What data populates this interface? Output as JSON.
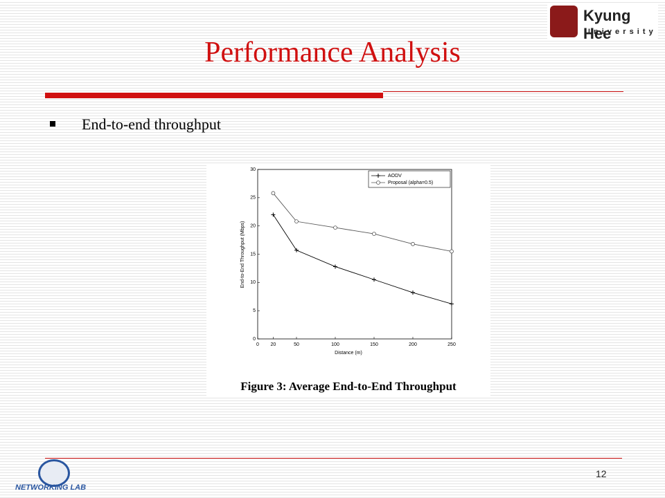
{
  "header": {
    "title": "Performance Analysis",
    "logo_name": "Kyung Hee",
    "logo_sub": "U n i v e r s i t y"
  },
  "bullet": "End-to-end throughput",
  "chart_data": {
    "type": "line",
    "x": [
      20,
      50,
      100,
      150,
      200,
      250
    ],
    "series": [
      {
        "name": "AODV",
        "color": "#000000",
        "marker": "+",
        "values": [
          22,
          15.7,
          12.8,
          10.5,
          8.2,
          6.2
        ]
      },
      {
        "name": "Proposal (alpha=0.5)",
        "color": "#555555",
        "marker": "o",
        "values": [
          25.8,
          20.8,
          19.7,
          18.6,
          16.8,
          15.5
        ]
      }
    ],
    "xlim": [
      0,
      250
    ],
    "xticks": [
      0,
      20,
      50,
      100,
      150,
      200,
      250
    ],
    "ylim": [
      0,
      30
    ],
    "yticks": [
      0,
      5,
      10,
      15,
      20,
      25,
      30
    ],
    "x_label": "Distance (m)",
    "y_label": "End-to-End Throughput (Mbps)",
    "legend": "upper right",
    "caption": "Figure 3: Average End-to-End Throughput"
  },
  "footer": {
    "page": "12",
    "logo": "NETWORKING LAB"
  }
}
